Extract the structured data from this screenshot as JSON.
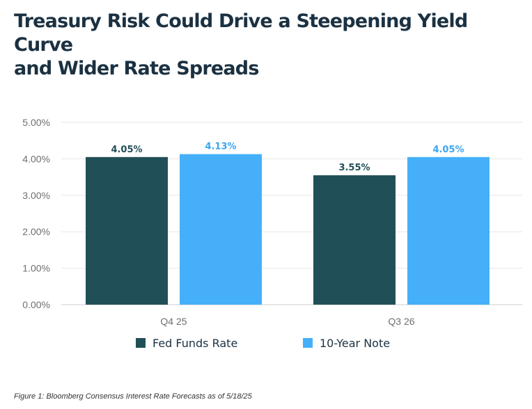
{
  "title": {
    "line1": "Treasury Risk Could Drive a Steepening Yield Curve",
    "line2": "and Wider Rate Spreads"
  },
  "caption": "Figure 1:  Bloomberg Consensus Interest Rate Forecasts as of 5/18/25",
  "chart_data": {
    "type": "bar",
    "title": "Treasury Risk Could Drive a Steepening Yield Curve and Wider Rate Spreads",
    "categories": [
      "Q4 25",
      "Q3 26"
    ],
    "series": [
      {
        "name": "Fed Funds Rate",
        "values": [
          4.05,
          3.55
        ],
        "labels": [
          "4.05%",
          "3.55%"
        ],
        "color": "#214f57",
        "label_color": "#214f57"
      },
      {
        "name": "10-Year Note",
        "values": [
          4.13,
          4.05
        ],
        "labels": [
          "4.13%",
          "4.05%"
        ],
        "color": "#45b0f9",
        "label_color": "#3aa5ef"
      }
    ],
    "yticks": [
      "0.00%",
      "1.00%",
      "2.00%",
      "3.00%",
      "4.00%",
      "5.00%"
    ],
    "ylim": [
      0,
      5
    ],
    "grid": true,
    "legend": "bottom-center"
  }
}
